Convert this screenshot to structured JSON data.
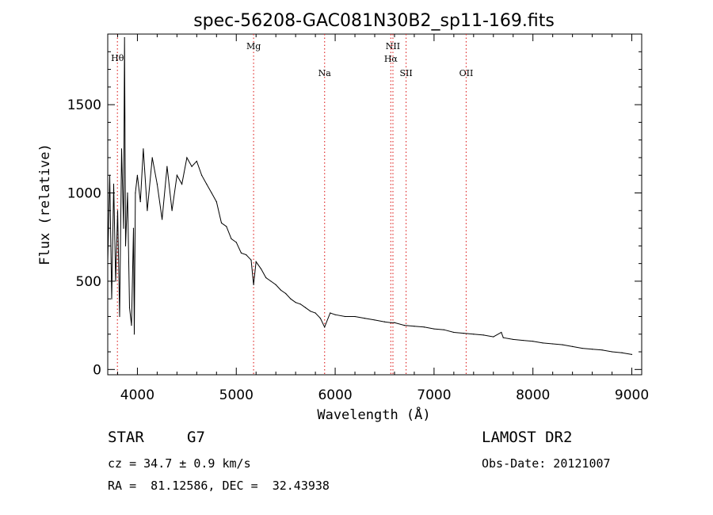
{
  "chart_data": {
    "type": "line",
    "title": "spec-56208-GAC081N30B2_sp11-169.fits",
    "xlabel": "Wavelength (Å)",
    "ylabel": "Flux (relative)",
    "xlim": [
      3700,
      9100
    ],
    "ylim": [
      -30,
      1900
    ],
    "xticks": [
      "4000",
      "5000",
      "6000",
      "7000",
      "8000",
      "9000"
    ],
    "yticks": [
      "0",
      "500",
      "1000",
      "1500"
    ],
    "grid": false,
    "line_color": "#000000",
    "marker_color": "#e0302f",
    "spectral_lines": [
      {
        "name": "Hθ",
        "wavelength": 3798
      },
      {
        "name": "Mg",
        "wavelength": 5175
      },
      {
        "name": "Na",
        "wavelength": 5893
      },
      {
        "name": "NII",
        "wavelength": 6584
      },
      {
        "name": "Hα",
        "wavelength": 6563
      },
      {
        "name": "SII",
        "wavelength": 6717
      },
      {
        "name": "OII",
        "wavelength": 7325
      }
    ],
    "series": [
      {
        "x": [
          3700,
          3720,
          3740,
          3760,
          3780,
          3800,
          3820,
          3840,
          3860,
          3870,
          3880,
          3900,
          3920,
          3940,
          3960,
          3968,
          3980,
          4000,
          4030,
          4060,
          4100,
          4150,
          4200,
          4250,
          4300,
          4350,
          4400,
          4450,
          4500,
          4550,
          4600,
          4650,
          4700,
          4750,
          4800,
          4850,
          4900,
          4950,
          5000,
          5050,
          5100,
          5150,
          5175,
          5200,
          5250,
          5300,
          5350,
          5400,
          5450,
          5500,
          5550,
          5600,
          5650,
          5700,
          5750,
          5800,
          5850,
          5893,
          5950,
          6000,
          6100,
          6200,
          6300,
          6400,
          6500,
          6563,
          6600,
          6700,
          6800,
          6900,
          7000,
          7100,
          7200,
          7300,
          7400,
          7500,
          7600,
          7680,
          7700,
          7800,
          7900,
          8000,
          8100,
          8200,
          8300,
          8400,
          8500,
          8600,
          8700,
          8800,
          8900,
          9000
        ],
        "y": [
          600,
          1100,
          400,
          1050,
          500,
          900,
          300,
          1250,
          800,
          1880,
          700,
          1000,
          350,
          250,
          800,
          200,
          1000,
          1100,
          950,
          1250,
          900,
          1200,
          1050,
          850,
          1150,
          900,
          1100,
          1050,
          1200,
          1150,
          1180,
          1100,
          1050,
          1000,
          950,
          830,
          810,
          740,
          720,
          660,
          650,
          620,
          480,
          610,
          570,
          520,
          500,
          480,
          450,
          430,
          400,
          380,
          370,
          350,
          330,
          320,
          290,
          240,
          320,
          310,
          300,
          300,
          290,
          280,
          270,
          265,
          265,
          250,
          245,
          240,
          230,
          225,
          210,
          205,
          200,
          195,
          185,
          210,
          180,
          170,
          165,
          160,
          150,
          145,
          140,
          130,
          120,
          115,
          110,
          100,
          95,
          85
        ]
      }
    ]
  },
  "info": {
    "object_class": "STAR",
    "subclass": "G7",
    "survey": "LAMOST DR2",
    "redshift": "cz = 34.7 ± 0.9 km/s",
    "obs_date": "Obs-Date: 20121007",
    "coords": "RA =  81.12586, DEC =  32.43938"
  }
}
